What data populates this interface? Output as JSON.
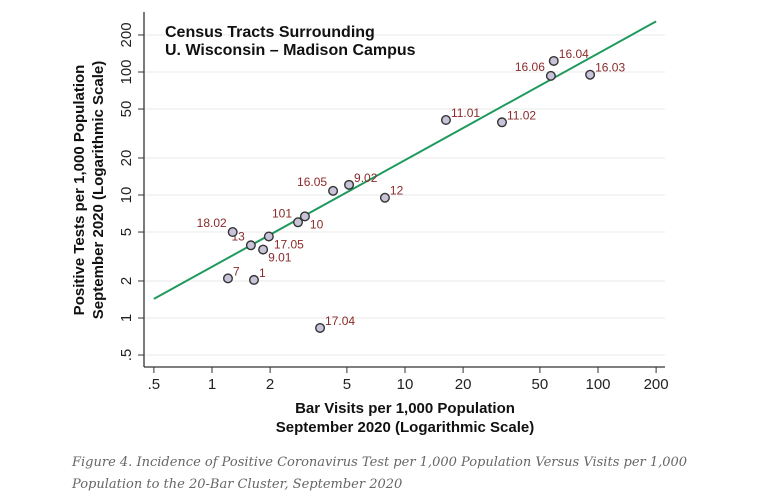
{
  "chart_data": {
    "type": "scatter",
    "title": [
      "Census Tracts Surrounding",
      "U. Wisconsin – Madison Campus"
    ],
    "xlabel": [
      "Bar Visits per 1,000 Population",
      "September 2020 (Logarithmic Scale)"
    ],
    "ylabel": [
      "Positive Tests per 1,000 Population",
      "September 2020 (Logarithmic Scale)"
    ],
    "xscale": "log",
    "yscale": "log",
    "xlim": [
      0.5,
      200
    ],
    "ylim": [
      0.5,
      200
    ],
    "xticks": [
      ".5",
      "1",
      "2",
      "5",
      "10",
      "20",
      "50",
      "100",
      "200"
    ],
    "xtick_values": [
      0.5,
      1,
      2,
      5,
      10,
      20,
      50,
      100,
      200
    ],
    "yticks": [
      ".5",
      "1",
      "2",
      "5",
      "10",
      "20",
      "50",
      "100",
      "200"
    ],
    "ytick_values": [
      0.5,
      1,
      2,
      5,
      10,
      20,
      50,
      100,
      200
    ],
    "grid": "horizontal",
    "points": [
      {
        "label": "7",
        "x": 1.21,
        "y": 2.1
      },
      {
        "label": "1",
        "x": 1.65,
        "y": 2.04
      },
      {
        "label": "13",
        "x": 1.59,
        "y": 3.9
      },
      {
        "label": "9.01",
        "x": 1.84,
        "y": 3.6
      },
      {
        "label": "17.05",
        "x": 1.97,
        "y": 4.6
      },
      {
        "label": "18.02",
        "x": 1.28,
        "y": 5.0
      },
      {
        "label": "101",
        "x": 2.79,
        "y": 6.0
      },
      {
        "label": "10",
        "x": 3.03,
        "y": 6.7
      },
      {
        "label": "16.05",
        "x": 4.24,
        "y": 10.8
      },
      {
        "label": "9.02",
        "x": 5.13,
        "y": 12.1
      },
      {
        "label": "12",
        "x": 7.87,
        "y": 9.5
      },
      {
        "label": "17.04",
        "x": 3.63,
        "y": 0.83
      },
      {
        "label": "11.01",
        "x": 16.3,
        "y": 40.7
      },
      {
        "label": "11.02",
        "x": 31.8,
        "y": 39
      },
      {
        "label": "16.04",
        "x": 59,
        "y": 123
      },
      {
        "label": "16.06",
        "x": 57,
        "y": 93
      },
      {
        "label": "16.03",
        "x": 91,
        "y": 95
      }
    ],
    "fit_line": {
      "x": [
        0.5,
        200
      ],
      "y": [
        1.43,
        258
      ]
    },
    "colors": {
      "marker_fill": "#c9c3d9",
      "marker_edge": "#333333",
      "fit_line": "#1f9a5e",
      "point_label": "#8b2a2a",
      "grid": "#eeeeee"
    }
  },
  "caption": "Figure 4. Incidence of Positive Coronavirus Test per 1,000 Population Versus Visits per 1,000 Population to the 20-Bar Cluster, September 2020"
}
